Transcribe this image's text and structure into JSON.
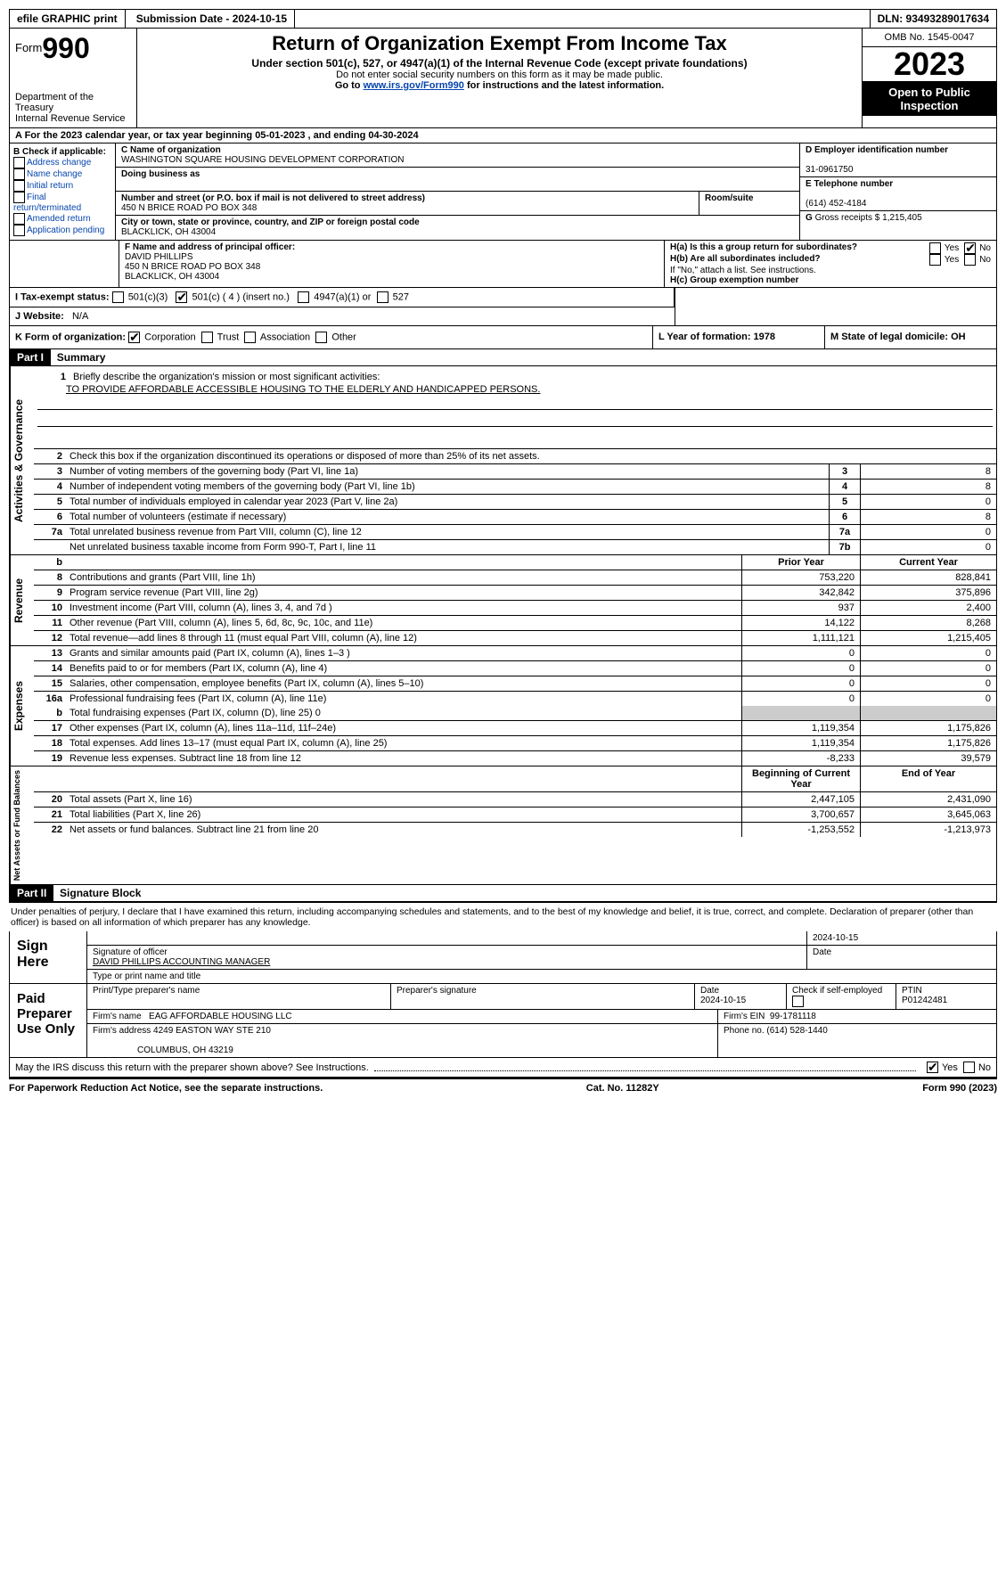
{
  "topbar": {
    "efile": "efile GRAPHIC print",
    "submission": "Submission Date - 2024-10-15",
    "dln": "DLN: 93493289017634"
  },
  "header": {
    "form_label": "Form",
    "form_no": "990",
    "dept": "Department of the Treasury",
    "irs": "Internal Revenue Service",
    "title": "Return of Organization Exempt From Income Tax",
    "sub": "Under section 501(c), 527, or 4947(a)(1) of the Internal Revenue Code (except private foundations)",
    "ssn": "Do not enter social security numbers on this form as it may be made public.",
    "goto_pre": "Go to ",
    "goto_link": "www.irs.gov/Form990",
    "goto_post": " for instructions and the latest information.",
    "omb": "OMB No. 1545-0047",
    "year": "2023",
    "open": "Open to Public Inspection"
  },
  "line_a": "A For the 2023 calendar year, or tax year beginning 05-01-2023    , and ending 04-30-2024",
  "box_b": {
    "title": "B Check if applicable:",
    "items": [
      "Address change",
      "Name change",
      "Initial return",
      "Final return/terminated",
      "Amended return",
      "Application pending"
    ]
  },
  "box_c": {
    "name_lbl": "C Name of organization",
    "name": "WASHINGTON SQUARE HOUSING DEVELOPMENT CORPORATION",
    "dba_lbl": "Doing business as",
    "dba": "",
    "street_lbl": "Number and street (or P.O. box if mail is not delivered to street address)",
    "street": "450 N BRICE ROAD PO BOX 348",
    "room_lbl": "Room/suite",
    "city_lbl": "City or town, state or province, country, and ZIP or foreign postal code",
    "city": "BLACKLICK, OH  43004"
  },
  "box_d": {
    "lbl": "D Employer identification number",
    "val": "31-0961750"
  },
  "box_e": {
    "lbl": "E Telephone number",
    "val": "(614) 452-4184"
  },
  "box_g": {
    "lbl": "G",
    "txt": "Gross receipts $ 1,215,405"
  },
  "box_f": {
    "lbl": "F  Name and address of principal officer:",
    "name": "DAVID PHILLIPS",
    "addr1": "450 N BRICE ROAD PO BOX 348",
    "addr2": "BLACKLICK, OH  43004"
  },
  "box_h": {
    "a": "H(a)  Is this a group return for subordinates?",
    "b": "H(b)  Are all subordinates included?",
    "b_note": "If \"No,\" attach a list. See instructions.",
    "c": "H(c)  Group exemption number"
  },
  "yes": "Yes",
  "no": "No",
  "tax_exempt": {
    "lbl": "I   Tax-exempt status:",
    "o1": "501(c)(3)",
    "o2": "501(c) ( 4 ) (insert no.)",
    "o3": "4947(a)(1) or",
    "o4": "527"
  },
  "website": {
    "lbl": "J   Website:",
    "val": "N/A"
  },
  "form_org": {
    "lbl": "K Form of organization:",
    "o1": "Corporation",
    "o2": "Trust",
    "o3": "Association",
    "o4": "Other"
  },
  "year_formed": {
    "lbl": "L Year of formation: 1978"
  },
  "domicile": {
    "lbl": "M State of legal domicile: OH"
  },
  "part1": {
    "label": "Part I",
    "title": "Summary"
  },
  "mission": {
    "lbl": "Briefly describe the organization's mission or most significant activities:",
    "text": "TO PROVIDE AFFORDABLE ACCESSIBLE HOUSING TO THE ELDERLY AND HANDICAPPED PERSONS."
  },
  "line2": "Check this box      if the organization discontinued its operations or disposed of more than 25% of its net assets.",
  "governance_rows": [
    {
      "n": "3",
      "d": "Number of voting members of the governing body (Part VI, line 1a)",
      "b": "3",
      "v": "8"
    },
    {
      "n": "4",
      "d": "Number of independent voting members of the governing body (Part VI, line 1b)",
      "b": "4",
      "v": "8"
    },
    {
      "n": "5",
      "d": "Total number of individuals employed in calendar year 2023 (Part V, line 2a)",
      "b": "5",
      "v": "0"
    },
    {
      "n": "6",
      "d": "Total number of volunteers (estimate if necessary)",
      "b": "6",
      "v": "8"
    },
    {
      "n": "7a",
      "d": "Total unrelated business revenue from Part VIII, column (C), line 12",
      "b": "7a",
      "v": "0"
    },
    {
      "n": "",
      "d": "Net unrelated business taxable income from Form 990-T, Part I, line 11",
      "b": "7b",
      "v": "0"
    }
  ],
  "prior_year": "Prior Year",
  "current_year": "Current Year",
  "revenue_rows": [
    {
      "n": "8",
      "d": "Contributions and grants (Part VIII, line 1h)",
      "p": "753,220",
      "c": "828,841"
    },
    {
      "n": "9",
      "d": "Program service revenue (Part VIII, line 2g)",
      "p": "342,842",
      "c": "375,896"
    },
    {
      "n": "10",
      "d": "Investment income (Part VIII, column (A), lines 3, 4, and 7d )",
      "p": "937",
      "c": "2,400"
    },
    {
      "n": "11",
      "d": "Other revenue (Part VIII, column (A), lines 5, 6d, 8c, 9c, 10c, and 11e)",
      "p": "14,122",
      "c": "8,268"
    },
    {
      "n": "12",
      "d": "Total revenue—add lines 8 through 11 (must equal Part VIII, column (A), line 12)",
      "p": "1,111,121",
      "c": "1,215,405"
    }
  ],
  "expenses_rows": [
    {
      "n": "13",
      "d": "Grants and similar amounts paid (Part IX, column (A), lines 1–3 )",
      "p": "0",
      "c": "0"
    },
    {
      "n": "14",
      "d": "Benefits paid to or for members (Part IX, column (A), line 4)",
      "p": "0",
      "c": "0"
    },
    {
      "n": "15",
      "d": "Salaries, other compensation, employee benefits (Part IX, column (A), lines 5–10)",
      "p": "0",
      "c": "0"
    },
    {
      "n": "16a",
      "d": "Professional fundraising fees (Part IX, column (A), line 11e)",
      "p": "0",
      "c": "0"
    }
  ],
  "line16b": {
    "n": "b",
    "d": "Total fundraising expenses (Part IX, column (D), line 25) 0"
  },
  "expenses_rows2": [
    {
      "n": "17",
      "d": "Other expenses (Part IX, column (A), lines 11a–11d, 11f–24e)",
      "p": "1,119,354",
      "c": "1,175,826"
    },
    {
      "n": "18",
      "d": "Total expenses. Add lines 13–17 (must equal Part IX, column (A), line 25)",
      "p": "1,119,354",
      "c": "1,175,826"
    },
    {
      "n": "19",
      "d": "Revenue less expenses. Subtract line 18 from line 12",
      "p": "-8,233",
      "c": "39,579"
    }
  ],
  "begin_year": "Beginning of Current Year",
  "end_year": "End of Year",
  "net_rows": [
    {
      "n": "20",
      "d": "Total assets (Part X, line 16)",
      "p": "2,447,105",
      "c": "2,431,090"
    },
    {
      "n": "21",
      "d": "Total liabilities (Part X, line 26)",
      "p": "3,700,657",
      "c": "3,645,063"
    },
    {
      "n": "22",
      "d": "Net assets or fund balances. Subtract line 21 from line 20",
      "p": "-1,253,552",
      "c": "-1,213,973"
    }
  ],
  "side_labels": {
    "gov": "Activities & Governance",
    "rev": "Revenue",
    "exp": "Expenses",
    "net": "Net Assets or Fund Balances"
  },
  "part2": {
    "label": "Part II",
    "title": "Signature Block"
  },
  "penalties": "Under penalties of perjury, I declare that I have examined this return, including accompanying schedules and statements, and to the best of my knowledge and belief, it is true, correct, and complete. Declaration of preparer (other than officer) is based on all information of which preparer has any knowledge.",
  "sign_here": "Sign Here",
  "sig": {
    "sig_lbl": "Signature of officer",
    "date_lbl": "Date",
    "date": "2024-10-15",
    "name": "DAVID PHILLIPS  ACCOUNTING MANAGER",
    "type_lbl": "Type or print name and title"
  },
  "paid_prep": "Paid Preparer Use Only",
  "prep": {
    "name_lbl": "Print/Type preparer's name",
    "sig_lbl": "Preparer's signature",
    "date_lbl": "Date",
    "date": "2024-10-15",
    "check_lbl": "Check       if self-employed",
    "ptin_lbl": "PTIN",
    "ptin": "P01242481",
    "firm_name_lbl": "Firm's name",
    "firm_name": "EAG AFFORDABLE HOUSING LLC",
    "firm_ein_lbl": "Firm's EIN",
    "firm_ein": "99-1781118",
    "firm_addr_lbl": "Firm's address",
    "firm_addr1": "4249 EASTON WAY STE 210",
    "firm_addr2": "COLUMBUS, OH  43219",
    "phone_lbl": "Phone no.",
    "phone": "(614) 528-1440"
  },
  "discuss": "May the IRS discuss this return with the preparer shown above? See Instructions.",
  "footer": {
    "left": "For Paperwork Reduction Act Notice, see the separate instructions.",
    "mid": "Cat. No. 11282Y",
    "right": "Form 990 (2023)"
  }
}
